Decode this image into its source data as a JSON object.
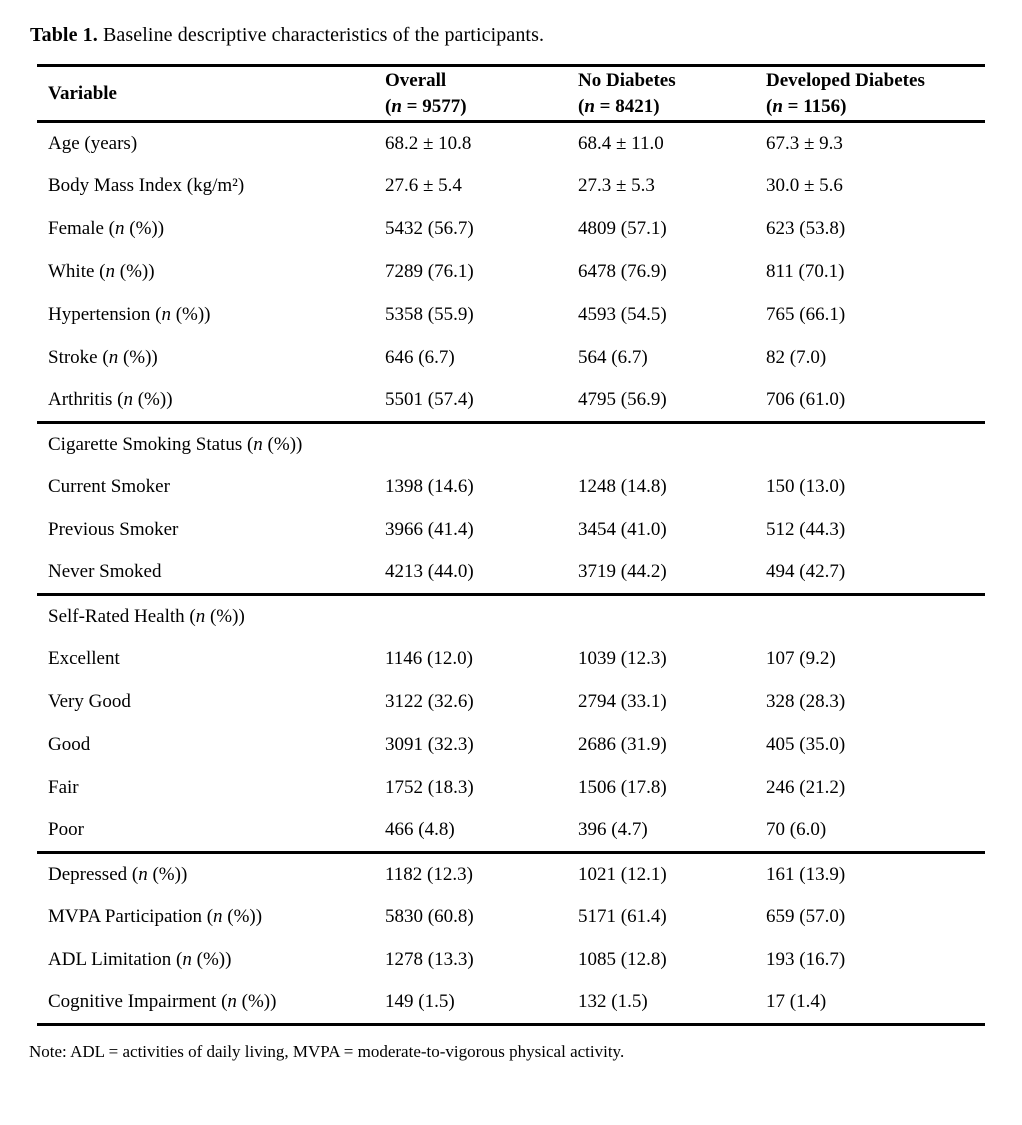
{
  "caption": {
    "prefix": "Table 1.",
    "text": " Baseline descriptive characteristics of the participants."
  },
  "table": {
    "header": {
      "col0": "Variable",
      "col1_line1": "Overall",
      "col1_line2": "(n = 9577)",
      "col2_line1": "No Diabetes",
      "col2_line2": "(n = 8421)",
      "col3_line1": "Developed Diabetes",
      "col3_line2": "(n = 1156)"
    },
    "sections": [
      {
        "rows": [
          {
            "label": "Age (years)",
            "v0": "68.2 ± 10.8",
            "v1": "68.4 ± 11.0",
            "v2": "67.3 ± 9.3"
          },
          {
            "label": "Body Mass Index (kg/m²)",
            "v0": "27.6 ± 5.4",
            "v1": "27.3 ± 5.3",
            "v2": "30.0 ± 5.6"
          },
          {
            "label": "Female (n (%))",
            "v0": "5432 (56.7)",
            "v1": "4809 (57.1)",
            "v2": "623 (53.8)"
          },
          {
            "label": "White (n (%))",
            "v0": "7289 (76.1)",
            "v1": "6478 (76.9)",
            "v2": "811 (70.1)"
          },
          {
            "label": "Hypertension (n (%))",
            "v0": "5358 (55.9)",
            "v1": "4593 (54.5)",
            "v2": "765 (66.1)"
          },
          {
            "label": "Stroke (n (%))",
            "v0": "646 (6.7)",
            "v1": "564 (6.7)",
            "v2": "82 (7.0)"
          },
          {
            "label": "Arthritis (n (%))",
            "v0": "5501 (57.4)",
            "v1": "4795 (56.9)",
            "v2": "706 (61.0)"
          }
        ]
      },
      {
        "header": "Cigarette Smoking Status (n (%))",
        "rows": [
          {
            "label": "Current Smoker",
            "v0": "1398 (14.6)",
            "v1": "1248 (14.8)",
            "v2": "150 (13.0)"
          },
          {
            "label": "Previous Smoker",
            "v0": "3966 (41.4)",
            "v1": "3454 (41.0)",
            "v2": "512 (44.3)"
          },
          {
            "label": "Never Smoked",
            "v0": "4213 (44.0)",
            "v1": "3719 (44.2)",
            "v2": "494 (42.7)"
          }
        ]
      },
      {
        "header": "Self-Rated Health (n (%))",
        "rows": [
          {
            "label": "Excellent",
            "v0": "1146 (12.0)",
            "v1": "1039 (12.3)",
            "v2": "107 (9.2)"
          },
          {
            "label": "Very Good",
            "v0": "3122 (32.6)",
            "v1": "2794 (33.1)",
            "v2": "328 (28.3)"
          },
          {
            "label": "Good",
            "v0": "3091 (32.3)",
            "v1": "2686 (31.9)",
            "v2": "405 (35.0)"
          },
          {
            "label": "Fair",
            "v0": "1752 (18.3)",
            "v1": "1506 (17.8)",
            "v2": "246 (21.2)"
          },
          {
            "label": "Poor",
            "v0": "466 (4.8)",
            "v1": "396 (4.7)",
            "v2": "70 (6.0)"
          }
        ]
      },
      {
        "rows": [
          {
            "label": "Depressed (n (%))",
            "v0": "1182 (12.3)",
            "v1": "1021 (12.1)",
            "v2": "161 (13.9)"
          },
          {
            "label": "MVPA Participation (n (%))",
            "v0": "5830 (60.8)",
            "v1": "5171 (61.4)",
            "v2": "659 (57.0)"
          },
          {
            "label": "ADL Limitation (n (%))",
            "v0": "1278 (13.3)",
            "v1": "1085 (12.8)",
            "v2": "193 (16.7)"
          },
          {
            "label": "Cognitive Impairment (n (%))",
            "v0": "149 (1.5)",
            "v1": "132 (1.5)",
            "v2": "17 (1.4)"
          }
        ]
      }
    ]
  },
  "note": "Note: ADL = activities of daily living, MVPA = moderate-to-vigorous physical activity."
}
